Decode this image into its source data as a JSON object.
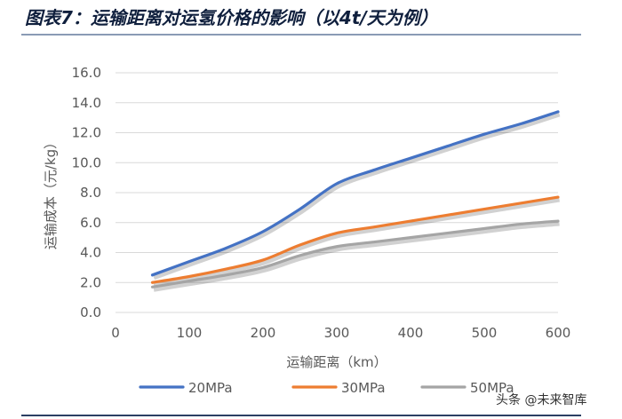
{
  "header": {
    "title": "图表7：运输距离对运氢价格的影响（以4t/天为例）"
  },
  "watermark": "头条 @未来智库",
  "chart_data": {
    "type": "line",
    "title": "图表7：运输距离对运氢价格的影响（以4t/天为例）",
    "xlabel": "运输距离（km）",
    "ylabel": "运输成本（元/kg）",
    "xlim": [
      0,
      600
    ],
    "ylim": [
      0.0,
      16.0
    ],
    "x_ticks": [
      "0",
      "100",
      "200",
      "300",
      "400",
      "500",
      "600"
    ],
    "y_ticks": [
      "0.0",
      "2.0",
      "4.0",
      "6.0",
      "8.0",
      "10.0",
      "12.0",
      "14.0",
      "16.0"
    ],
    "grid": "horizontal",
    "legend_position": "bottom",
    "x": [
      50,
      100,
      150,
      200,
      250,
      300,
      350,
      400,
      450,
      500,
      550,
      600
    ],
    "series": [
      {
        "name": "20MPa",
        "color": "#4472c4",
        "values": [
          2.5,
          3.4,
          4.3,
          5.4,
          6.9,
          8.6,
          9.5,
          10.3,
          11.1,
          11.9,
          12.6,
          13.4
        ]
      },
      {
        "name": "30MPa",
        "color": "#ed7d31",
        "values": [
          2.0,
          2.4,
          2.9,
          3.5,
          4.5,
          5.3,
          5.7,
          6.1,
          6.5,
          6.9,
          7.3,
          7.7
        ]
      },
      {
        "name": "50MPa",
        "color": "#a5a5a5",
        "values": [
          1.7,
          2.1,
          2.5,
          3.0,
          3.8,
          4.4,
          4.7,
          5.0,
          5.3,
          5.6,
          5.9,
          6.1
        ]
      }
    ]
  }
}
